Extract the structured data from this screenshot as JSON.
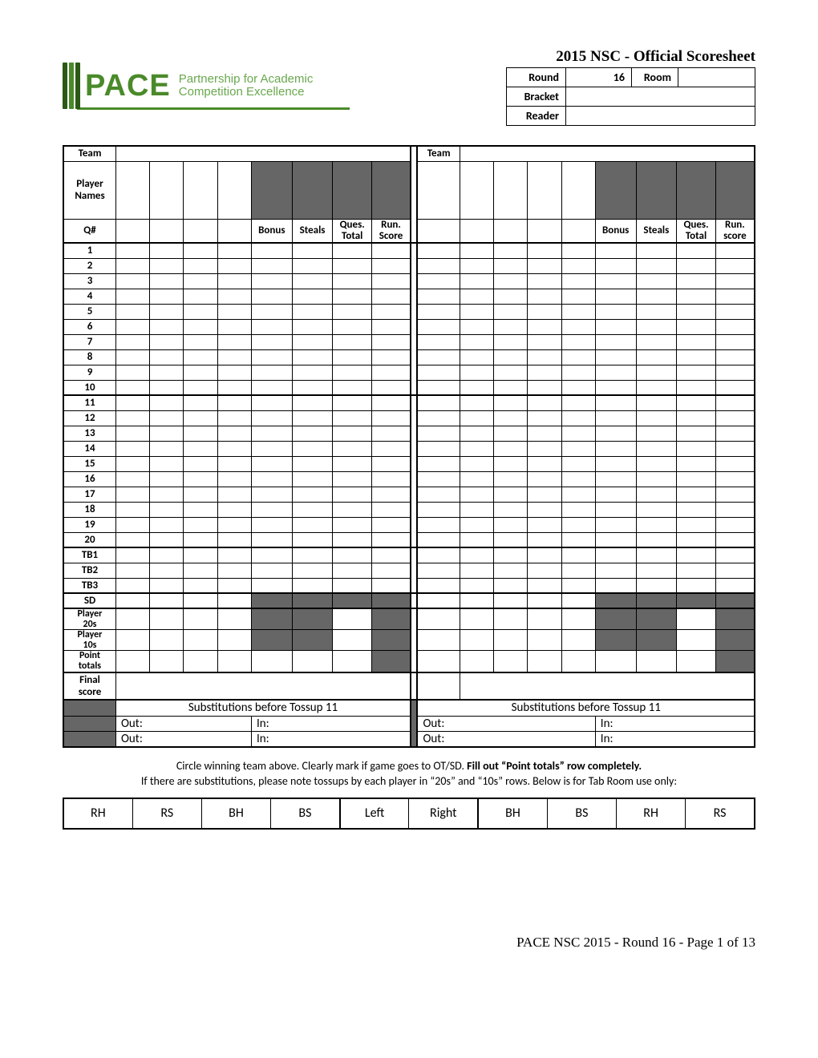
{
  "title": "2015 NSC - Official Scoresheet",
  "logo": {
    "word": "PACE",
    "sub1": "Partnership for Academic",
    "sub2": "Competition Excellence",
    "green": "#4a8a2a",
    "lightgreen": "#6aa84f"
  },
  "meta": {
    "round_lbl": "Round",
    "round_val": "16",
    "room_lbl": "Room",
    "room_val": "",
    "bracket_lbl": "Bracket",
    "bracket_val": "",
    "reader_lbl": "Reader",
    "reader_val": ""
  },
  "cols": {
    "team": "Team",
    "player_names": "Player\nNames",
    "q": "Q#",
    "bonus": "Bonus",
    "steals": "Steals",
    "ques_total": "Ques.\nTotal",
    "run_score_L": "Run.\nScore",
    "run_score_R": "Run.\nscore"
  },
  "rows": {
    "q": [
      "1",
      "2",
      "3",
      "4",
      "5",
      "6",
      "7",
      "8",
      "9",
      "10",
      "11",
      "12",
      "13",
      "14",
      "15",
      "16",
      "17",
      "18",
      "19",
      "20"
    ],
    "tb": [
      "TB1",
      "TB2",
      "TB3"
    ],
    "sd": "SD",
    "p20": "Player\n20s",
    "p10": "Player\n10s",
    "pt": "Point\ntotals",
    "final": "Final\nscore",
    "subs": "Substitutions before Tossup 11",
    "out": "Out:",
    "in": "In:"
  },
  "notes": {
    "l1a": "Circle winning team above. Clearly mark if game goes to OT/SD. ",
    "l1b": "Fill out “Point totals” row completely.",
    "l2": "If there are substitutions, please note tossups by each player in “20s” and “10s” rows. Below is for Tab Room use only:"
  },
  "tab": [
    "RH",
    "RS",
    "BH",
    "BS",
    "Left",
    "Right",
    "BH",
    "BS",
    "RH",
    "RS"
  ],
  "footer": "PACE NSC 2015 - Round 16 - Page 1 of 13",
  "shade": "#666666"
}
